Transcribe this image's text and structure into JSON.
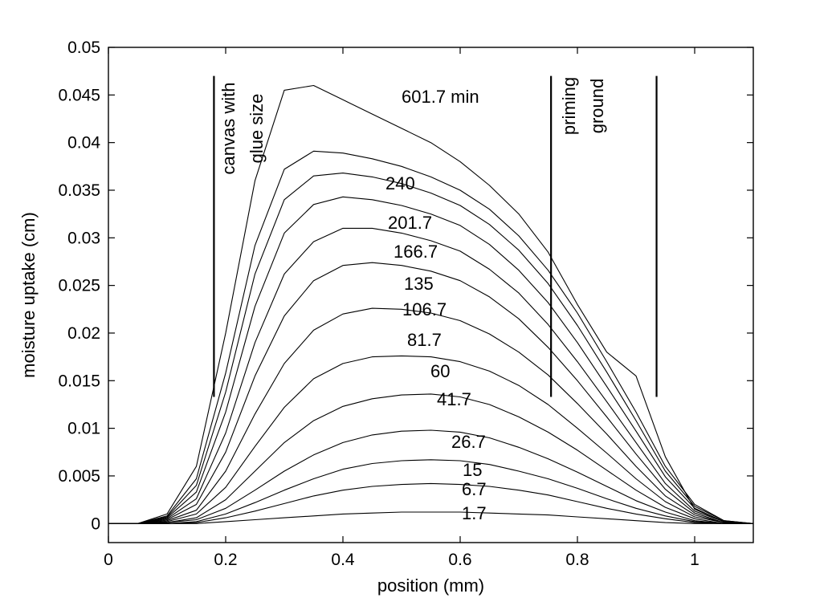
{
  "chart_data": {
    "type": "line",
    "title": "",
    "xlabel": "position (mm)",
    "ylabel": "moisture uptake (cm)",
    "xlim": [
      0,
      1.1
    ],
    "ylim": [
      -0.002,
      0.05
    ],
    "xticks": [
      0,
      0.2,
      0.4,
      0.6,
      0.8,
      1
    ],
    "xtick_labels": [
      "0",
      "0.2",
      "0.4",
      "0.6",
      "0.8",
      "1"
    ],
    "yticks": [
      0,
      0.005,
      0.01,
      0.015,
      0.02,
      0.025,
      0.03,
      0.035,
      0.04,
      0.045,
      0.05
    ],
    "ytick_labels": [
      "0",
      "0.005",
      "0.01",
      "0.015",
      "0.02",
      "0.025",
      "0.03",
      "0.035",
      "0.04",
      "0.045",
      "0.05"
    ],
    "grid": false,
    "legend": "none",
    "x": [
      0,
      0.05,
      0.1,
      0.15,
      0.2,
      0.25,
      0.3,
      0.35,
      0.4,
      0.45,
      0.5,
      0.55,
      0.6,
      0.65,
      0.7,
      0.75,
      0.8,
      0.85,
      0.9,
      0.95,
      1.0,
      1.05,
      1.1
    ],
    "series": [
      {
        "name": "1.7",
        "values": [
          0,
          0,
          0,
          0,
          0.0002,
          0.0004,
          0.0006,
          0.0008,
          0.001,
          0.0011,
          0.0012,
          0.0012,
          0.0012,
          0.0011,
          0.001,
          0.0009,
          0.0007,
          0.0005,
          0.0003,
          0.0001,
          0,
          0,
          0
        ]
      },
      {
        "name": "6.7",
        "values": [
          0,
          0,
          0,
          0.0001,
          0.0006,
          0.0013,
          0.0021,
          0.0029,
          0.0035,
          0.0039,
          0.0041,
          0.0042,
          0.0041,
          0.0039,
          0.0035,
          0.003,
          0.0023,
          0.0016,
          0.001,
          0.0005,
          0.0001,
          0,
          0
        ]
      },
      {
        "name": "15",
        "values": [
          0,
          0,
          0,
          0.0002,
          0.001,
          0.0022,
          0.0035,
          0.0047,
          0.0057,
          0.0063,
          0.0066,
          0.0067,
          0.0066,
          0.0062,
          0.0055,
          0.0047,
          0.0037,
          0.0026,
          0.0016,
          0.0008,
          0.0002,
          0,
          0
        ]
      },
      {
        "name": "26.7",
        "values": [
          0,
          0,
          0.0001,
          0.0004,
          0.0016,
          0.0035,
          0.0055,
          0.0072,
          0.0085,
          0.0093,
          0.0097,
          0.0098,
          0.0096,
          0.009,
          0.008,
          0.0068,
          0.0054,
          0.0039,
          0.0024,
          0.0012,
          0.0003,
          0,
          0
        ]
      },
      {
        "name": "41.7",
        "values": [
          0,
          0,
          0.0001,
          0.0006,
          0.0025,
          0.0055,
          0.0085,
          0.0108,
          0.0123,
          0.0131,
          0.0135,
          0.0136,
          0.0133,
          0.0125,
          0.0112,
          0.0096,
          0.0077,
          0.0056,
          0.0035,
          0.0017,
          0.0005,
          0,
          0
        ]
      },
      {
        "name": "60",
        "values": [
          0,
          0,
          0.0002,
          0.001,
          0.0038,
          0.0081,
          0.0122,
          0.0152,
          0.0168,
          0.0175,
          0.0176,
          0.0175,
          0.017,
          0.016,
          0.0145,
          0.0125,
          0.01,
          0.0074,
          0.0047,
          0.0023,
          0.0007,
          0.0001,
          0
        ]
      },
      {
        "name": "81.7",
        "values": [
          0,
          0,
          0.0003,
          0.0014,
          0.0055,
          0.0115,
          0.0168,
          0.0203,
          0.022,
          0.0226,
          0.0225,
          0.0221,
          0.0213,
          0.0199,
          0.018,
          0.0156,
          0.0126,
          0.0094,
          0.006,
          0.0029,
          0.0009,
          0.0001,
          0
        ]
      },
      {
        "name": "106.7",
        "values": [
          0,
          0,
          0.0004,
          0.002,
          0.0075,
          0.0155,
          0.0218,
          0.0255,
          0.0271,
          0.0274,
          0.0271,
          0.0265,
          0.0255,
          0.0238,
          0.0215,
          0.0185,
          0.015,
          0.0112,
          0.0073,
          0.0036,
          0.0011,
          0.0001,
          0
        ]
      },
      {
        "name": "135",
        "values": [
          0,
          0,
          0.0005,
          0.0026,
          0.0095,
          0.019,
          0.0262,
          0.0296,
          0.031,
          0.031,
          0.0305,
          0.0297,
          0.0286,
          0.0267,
          0.0242,
          0.0209,
          0.017,
          0.0128,
          0.0085,
          0.0042,
          0.0013,
          0.0002,
          0
        ]
      },
      {
        "name": "166.7",
        "values": [
          0,
          0,
          0.0006,
          0.0033,
          0.0117,
          0.0228,
          0.0305,
          0.0335,
          0.0343,
          0.034,
          0.0334,
          0.0325,
          0.0313,
          0.0293,
          0.0266,
          0.0232,
          0.019,
          0.0144,
          0.0097,
          0.0049,
          0.0016,
          0.0002,
          0
        ]
      },
      {
        "name": "201.7",
        "values": [
          0,
          0,
          0.0007,
          0.004,
          0.0138,
          0.0262,
          0.034,
          0.0365,
          0.0368,
          0.0364,
          0.0357,
          0.0347,
          0.0334,
          0.0314,
          0.0287,
          0.0252,
          0.0208,
          0.0159,
          0.0108,
          0.0055,
          0.0018,
          0.0003,
          0
        ]
      },
      {
        "name": "240",
        "values": [
          0,
          0,
          0.0008,
          0.0047,
          0.0158,
          0.0292,
          0.0372,
          0.0391,
          0.0389,
          0.0383,
          0.0375,
          0.0364,
          0.035,
          0.033,
          0.0302,
          0.0266,
          0.0221,
          0.017,
          0.0117,
          0.006,
          0.002,
          0.0003,
          0
        ]
      },
      {
        "name": "601.7 min",
        "values": [
          0,
          0,
          0.001,
          0.006,
          0.02,
          0.036,
          0.0455,
          0.046,
          0.0445,
          0.043,
          0.0415,
          0.04,
          0.038,
          0.0355,
          0.0325,
          0.0285,
          0.023,
          0.018,
          0.0155,
          0.007,
          0.0015,
          0.0002,
          0
        ]
      }
    ],
    "curve_labels": [
      "601.7 min",
      "240",
      "201.7",
      "166.7",
      "135",
      "106.7",
      "81.7",
      "60",
      "41.7",
      "26.7",
      "15",
      "6.7",
      "1.7"
    ],
    "regions": [
      {
        "label_lines": [
          "canvas with",
          "glue size"
        ],
        "x_start": 0.18,
        "x_end": 0.755,
        "y_bottom": 0.0133,
        "y_top": 0.047
      },
      {
        "label_lines": [
          "priming",
          "ground"
        ],
        "x_start": 0.755,
        "x_end": 0.935,
        "y_bottom": 0.0133,
        "y_top": 0.047
      }
    ]
  }
}
